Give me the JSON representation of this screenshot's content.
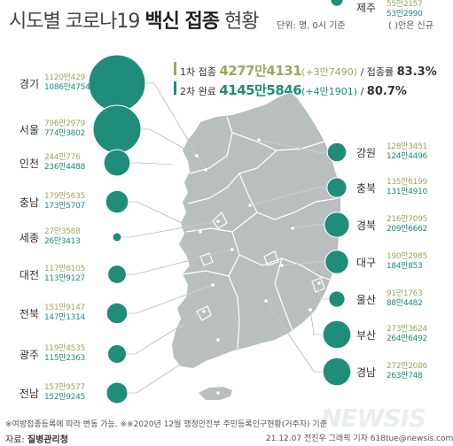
{
  "title": {
    "prefix": "시도별 코로나19 ",
    "bold": "백신 접종",
    "suffix": " 현황"
  },
  "unit_note": "단위: 명, 0시 기준",
  "paren_note": "( )안은 신규",
  "summary": {
    "first": {
      "label": "1차 접종",
      "total": "4277만4131",
      "new": "(+3만7490)",
      "rate_label": "/ 접종률",
      "rate": "83.3%"
    },
    "second": {
      "label": "2차 완료",
      "total": "4145만5846",
      "new": "(+4만1901)",
      "rate_label": "/",
      "rate": "80.7%"
    }
  },
  "colors": {
    "first_dose": "#95ab62",
    "second_dose": "#1f8d7a",
    "map": "#b9bfbf",
    "bubble": "#1f8d7a"
  },
  "chart_data": {
    "type": "bubble-map",
    "series": [
      {
        "name": "1차 접종"
      },
      {
        "name": "2차 완료"
      }
    ],
    "regions": [
      {
        "name": "경기",
        "first": "1120만429",
        "second": "1086만4754",
        "value": 11200429,
        "side": "left"
      },
      {
        "name": "서울",
        "first": "796만2979",
        "second": "774만3802",
        "value": 7962979,
        "side": "left"
      },
      {
        "name": "인천",
        "first": "244만776",
        "second": "236만4488",
        "value": 2440776,
        "side": "left"
      },
      {
        "name": "충남",
        "first": "179만5635",
        "second": "173만5707",
        "value": 1795635,
        "side": "left"
      },
      {
        "name": "세종",
        "first": "27만3588",
        "second": "26만3413",
        "value": 273588,
        "side": "left"
      },
      {
        "name": "대전",
        "first": "117만8105",
        "second": "113만9127",
        "value": 1178105,
        "side": "left"
      },
      {
        "name": "전북",
        "first": "151만9147",
        "second": "147만1314",
        "value": 1519147,
        "side": "left"
      },
      {
        "name": "광주",
        "first": "119만4535",
        "second": "115만2363",
        "value": 1194535,
        "side": "left"
      },
      {
        "name": "전남",
        "first": "157만9577",
        "second": "152만9245",
        "value": 1579577,
        "side": "left"
      },
      {
        "name": "강원",
        "first": "128만3451",
        "second": "124만4496",
        "value": 1283451,
        "side": "right"
      },
      {
        "name": "충북",
        "first": "135만6199",
        "second": "131만4910",
        "value": 1356199,
        "side": "right"
      },
      {
        "name": "경북",
        "first": "216만7095",
        "second": "209만6662",
        "value": 2167095,
        "side": "right"
      },
      {
        "name": "대구",
        "first": "190만2985",
        "second": "184만853",
        "value": 1902985,
        "side": "right"
      },
      {
        "name": "울산",
        "first": "91만1763",
        "second": "88만4482",
        "value": 911763,
        "side": "right"
      },
      {
        "name": "부산",
        "first": "273만3624",
        "second": "264만6492",
        "value": 2733624,
        "side": "right"
      },
      {
        "name": "경남",
        "first": "272만2086",
        "second": "263만748",
        "value": 2722086,
        "side": "right"
      },
      {
        "name": "제주",
        "first": "55만2157",
        "second": "53만2990",
        "value": 552157,
        "side": "right"
      }
    ]
  },
  "footnote": "※여방접종등록에 따라 변동 가능,   ※※2020년 12월 행정안전부 주민등록인구현황(거주자) 기준",
  "source": {
    "label": "자료: ",
    "name": "질병관리청"
  },
  "credit": "21.12.07 전진우 그래픽 기자 618tue@newsis.com",
  "watermark": "NEWSIS"
}
